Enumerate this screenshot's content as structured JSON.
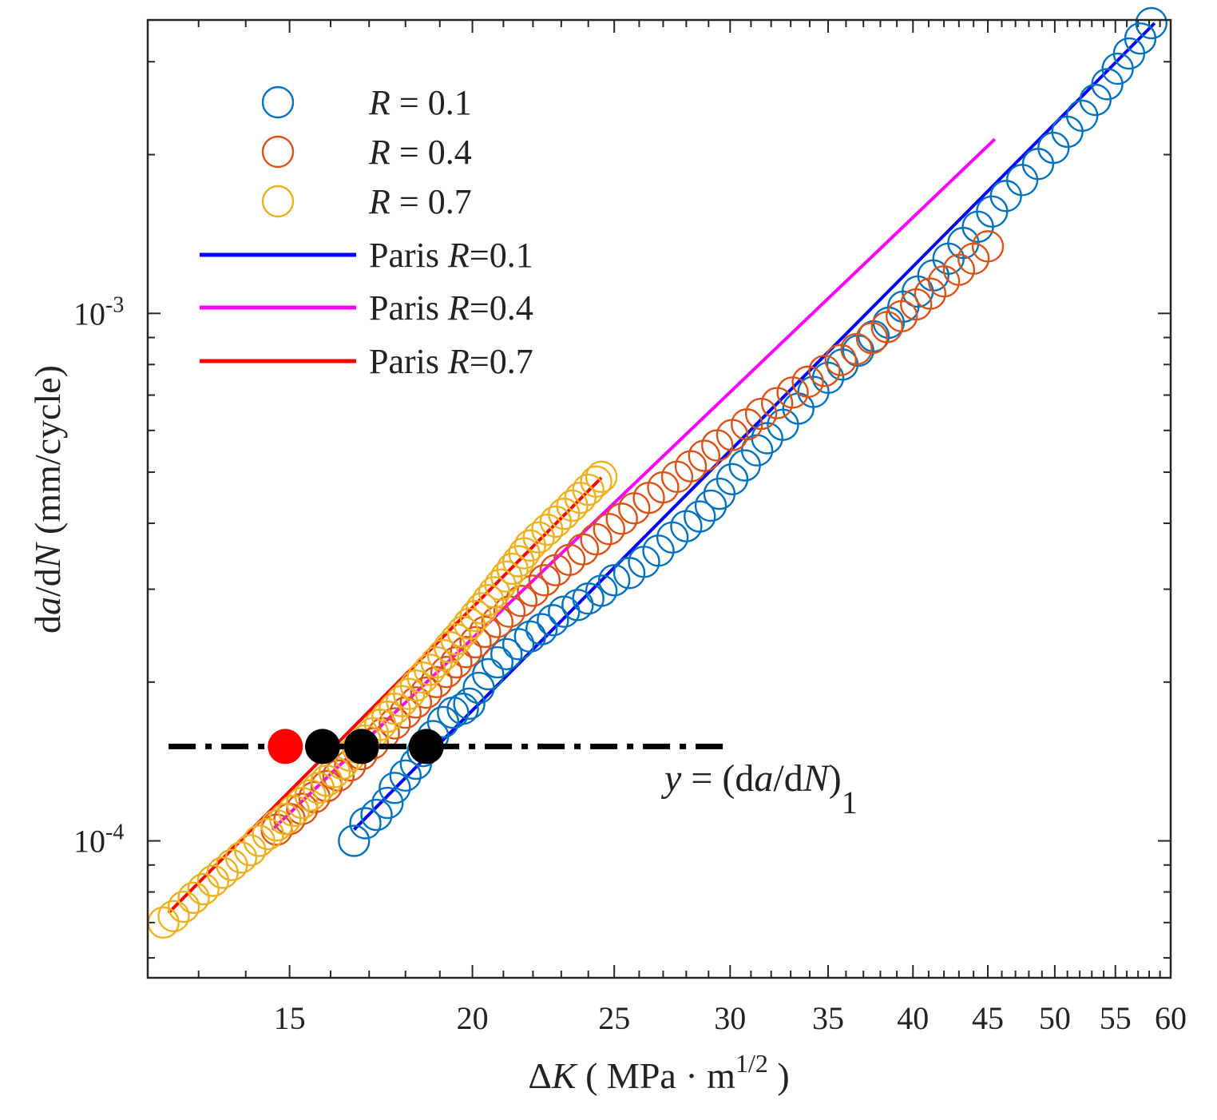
{
  "chart_data": {
    "type": "scatter",
    "xscale": "log",
    "yscale": "log",
    "xlim": [
      12.0,
      60.0
    ],
    "ylim": [
      5.5e-05,
      0.0036
    ],
    "xlabel": {
      "delta": "Δ",
      "var": "K",
      "open": " ( MPa · m",
      "sup": "1/2",
      "close": " )"
    },
    "ylabel": {
      "d1": "d",
      "a": "a",
      "slash": "/d",
      "N": "N",
      "units": " (mm/cycle)"
    },
    "xticks": [
      15,
      20,
      25,
      30,
      35,
      40,
      45,
      50,
      55,
      60
    ],
    "xticks_labels": [
      "15",
      "20",
      "25",
      "30",
      "35",
      "40",
      "45",
      "50",
      "55",
      "60"
    ],
    "yticks_major": [
      {
        "value": 0.0001,
        "base": "10",
        "exp": "-4"
      },
      {
        "value": 0.001,
        "base": "10",
        "exp": "-3"
      }
    ],
    "series": [
      {
        "name": "R = 0.1",
        "legend_var": "R",
        "legend_rest": " = 0.1",
        "color": "#0072BD",
        "marker": "circle-open",
        "x": [
          16.6,
          16.9,
          17.2,
          17.5,
          17.7,
          18.0,
          18.3,
          18.5,
          18.8,
          19.1,
          19.4,
          19.7,
          19.9,
          20.2,
          20.5,
          20.8,
          21.1,
          21.5,
          21.9,
          22.3,
          22.7,
          23.1,
          23.6,
          24.0,
          24.5,
          25.0,
          25.6,
          26.2,
          26.8,
          27.4,
          28.0,
          28.6,
          29.1,
          29.5,
          30.1,
          30.7,
          31.3,
          31.8,
          32.6,
          33.4,
          34.2,
          35.0,
          35.8,
          36.7,
          37.6,
          38.5,
          39.4,
          40.3,
          41.3,
          42.3,
          43.3,
          44.3,
          45.3,
          46.3,
          47.5,
          48.7,
          49.9,
          51.0,
          52.2,
          53.3,
          54.3,
          55.2,
          56.2,
          57.2,
          58.2
        ],
        "y": [
          0.0001,
          0.000108,
          0.000112,
          0.000118,
          0.000126,
          0.000133,
          0.00014,
          0.000148,
          0.000158,
          0.000168,
          0.000175,
          0.000178,
          0.000182,
          0.000195,
          0.000207,
          0.000218,
          0.000226,
          0.000236,
          0.000244,
          0.000252,
          0.000262,
          0.000272,
          0.00028,
          0.000288,
          0.000298,
          0.000312,
          0.000322,
          0.000338,
          0.000355,
          0.000376,
          0.000395,
          0.000412,
          0.000432,
          0.000455,
          0.000485,
          0.000515,
          0.00055,
          0.00058,
          0.000615,
          0.00066,
          0.00071,
          0.000755,
          0.0008,
          0.00085,
          0.000905,
          0.00096,
          0.00103,
          0.0011,
          0.00118,
          0.00127,
          0.00136,
          0.00146,
          0.00156,
          0.00167,
          0.00179,
          0.00192,
          0.00206,
          0.00221,
          0.00237,
          0.00254,
          0.00272,
          0.00291,
          0.00311,
          0.00332,
          0.00355
        ]
      },
      {
        "name": "R = 0.4",
        "legend_var": "R",
        "legend_rest": " = 0.4",
        "color": "#D95319",
        "marker": "circle-open",
        "x": [
          14.7,
          15.0,
          15.3,
          15.6,
          15.9,
          16.2,
          16.5,
          16.8,
          17.1,
          17.4,
          17.7,
          18.0,
          18.3,
          18.6,
          18.9,
          19.2,
          19.5,
          19.8,
          20.1,
          20.4,
          20.8,
          21.2,
          21.6,
          22.0,
          22.4,
          22.8,
          23.3,
          23.8,
          24.3,
          24.8,
          25.3,
          25.8,
          26.4,
          27.0,
          27.6,
          28.2,
          28.8,
          29.4,
          30.1,
          30.8,
          31.5,
          32.3,
          33.1,
          33.9,
          34.8,
          35.7,
          36.6,
          37.5,
          38.4,
          39.3,
          40.2,
          41.1,
          42.0,
          43.0,
          44.0,
          45.0
        ],
        "y": [
          0.000105,
          0.00011,
          0.000115,
          0.000121,
          0.000127,
          0.000133,
          0.000139,
          0.000146,
          0.000153,
          0.00016,
          0.000167,
          0.000175,
          0.000183,
          0.000191,
          0.0002,
          0.000209,
          0.000218,
          0.000228,
          0.000238,
          0.000249,
          0.00026,
          0.000272,
          0.000285,
          0.000298,
          0.000312,
          0.000326,
          0.000341,
          0.000357,
          0.000373,
          0.00039,
          0.000408,
          0.000427,
          0.000447,
          0.000468,
          0.00049,
          0.000513,
          0.000537,
          0.000562,
          0.000588,
          0.000616,
          0.000645,
          0.000676,
          0.000708,
          0.000742,
          0.000778,
          0.000816,
          0.000856,
          0.000898,
          0.000942,
          0.000988,
          0.00104,
          0.00109,
          0.00115,
          0.00121,
          0.00127,
          0.00134
        ]
      },
      {
        "name": "R = 0.7",
        "legend_var": "R",
        "legend_rest": " = 0.7",
        "color": "#EDB120",
        "marker": "circle-open",
        "x": [
          12.3,
          12.5,
          12.7,
          12.9,
          13.1,
          13.3,
          13.5,
          13.7,
          13.9,
          14.1,
          14.3,
          14.5,
          14.7,
          14.9,
          15.1,
          15.3,
          15.5,
          15.7,
          15.9,
          16.1,
          16.3,
          16.5,
          16.7,
          16.9,
          17.1,
          17.3,
          17.5,
          17.7,
          17.9,
          18.1,
          18.3,
          18.5,
          18.7,
          18.9,
          19.1,
          19.3,
          19.5,
          19.7,
          19.9,
          20.1,
          20.3,
          20.5,
          20.7,
          20.9,
          21.1,
          21.3,
          21.5,
          21.7,
          21.9,
          22.2,
          22.5,
          22.8,
          23.1,
          23.4,
          23.7,
          24.0,
          24.3,
          24.5
        ],
        "y": [
          7e-05,
          7.2e-05,
          7.5e-05,
          7.8e-05,
          8.1e-05,
          8.4e-05,
          8.7e-05,
          9e-05,
          9.3e-05,
          9.6e-05,
          0.0001,
          0.000103,
          0.000107,
          0.00011,
          0.000114,
          0.000118,
          0.000122,
          0.000126,
          0.00013,
          0.000135,
          0.00014,
          0.000145,
          0.00015,
          0.000155,
          0.00016,
          0.000166,
          0.000172,
          0.000178,
          0.000184,
          0.00019,
          0.000197,
          0.000204,
          0.000211,
          0.000218,
          0.000225,
          0.000233,
          0.000241,
          0.000249,
          0.000258,
          0.000267,
          0.000276,
          0.000286,
          0.000296,
          0.000306,
          0.000317,
          0.000328,
          0.000339,
          0.000351,
          0.000363,
          0.000376,
          0.000389,
          0.000403,
          0.000417,
          0.000432,
          0.000447,
          0.000463,
          0.00048,
          0.00049
        ]
      }
    ],
    "fit_lines": [
      {
        "name": "Paris R=0.1",
        "legend_pre": "Paris ",
        "legend_var": "R",
        "legend_rest": "=0.1",
        "color": "#0000FF",
        "x": [
          16.6,
          58.5
        ],
        "y": [
          0.000105,
          0.00355
        ]
      },
      {
        "name": "Paris R=0.4",
        "legend_pre": "Paris ",
        "legend_var": "R",
        "legend_rest": "=0.4",
        "color": "#FF00FF",
        "x": [
          14.6,
          45.5
        ],
        "y": [
          0.000105,
          0.00214
        ]
      },
      {
        "name": "Paris R=0.7",
        "legend_pre": "Paris ",
        "legend_var": "R",
        "legend_rest": "=0.7",
        "color": "#FF0000",
        "x": [
          12.4,
          24.5
        ],
        "y": [
          7.3e-05,
          0.000488
        ]
      }
    ],
    "threshold_line": {
      "y": 0.000151,
      "x_start": 12.4,
      "x_end": 30.0,
      "color": "#000000",
      "style": "dash-dot"
    },
    "intersection_points": [
      {
        "x": 14.9,
        "y": 0.000151,
        "color": "#FF0000"
      },
      {
        "x": 15.8,
        "y": 0.000151,
        "color": "#000000"
      },
      {
        "x": 16.8,
        "y": 0.000151,
        "color": "#000000"
      },
      {
        "x": 18.6,
        "y": 0.000151,
        "color": "#000000"
      }
    ],
    "annotation": {
      "var": "y",
      "eq": " = (d",
      "a": "a",
      "mid": "/d",
      "N": "N",
      "close": ")",
      "sub": "1"
    },
    "legend_position": "top-left"
  }
}
